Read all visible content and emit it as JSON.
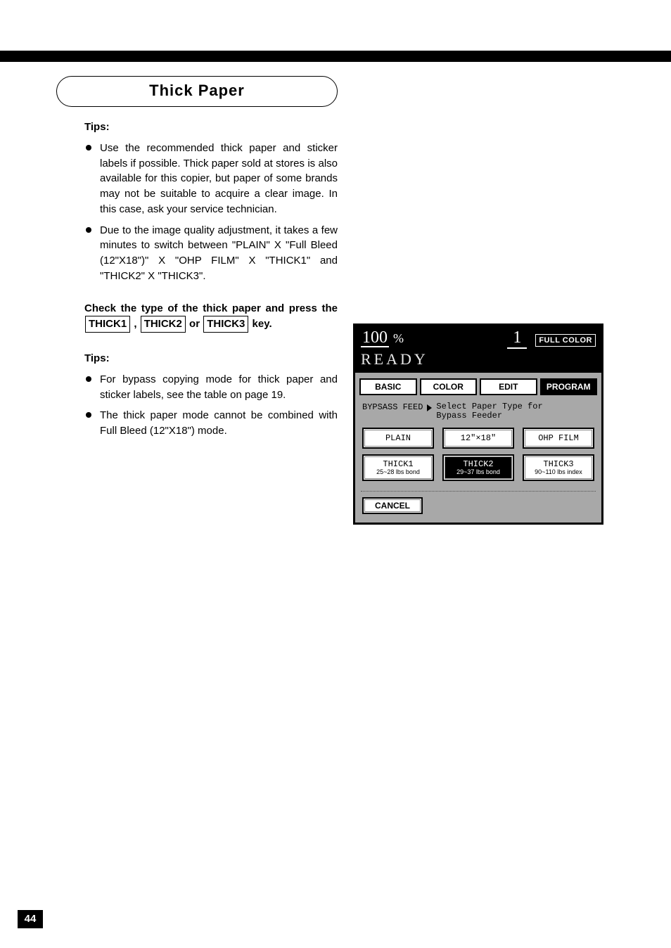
{
  "page": {
    "section_title": "Thick Paper",
    "page_number": "44"
  },
  "tips1_label": "Tips:",
  "tips1": [
    "Use the recommended thick paper and sticker labels if possible.  Thick paper sold at stores is also available for this copier, but paper of some brands may not be suitable to acquire a clear image.  In this case, ask your service technician.",
    "Due to the image quality adjustment, it takes a few minutes to switch between \"PLAIN\" X \"Full Bleed (12\"X18\")\" X \"OHP FILM\" X \"THICK1\" and \"THICK2\" X \"THICK3\"."
  ],
  "check": {
    "pre": "Check the type of the thick paper and press the",
    "k1": "THICK1",
    "sep1": ",",
    "k2": "THICK2",
    "sep2": "or",
    "k3": "THICK3",
    "post": " key."
  },
  "tips2_label": "Tips:",
  "tips2": [
    "For bypass copying mode for thick paper and sticker labels, see the table on page 19.",
    "The thick paper mode cannot be combined with Full Bleed (12\"X18\") mode."
  ],
  "lcd": {
    "zoom": "100",
    "pct": "%",
    "qty": "1",
    "fullcolor": "FULL COLOR",
    "ready": "READY",
    "tabs": {
      "basic": "BASIC",
      "color": "COLOR",
      "edit": "EDIT",
      "program": "PROGRAM"
    },
    "bypass_label": "BYPSASS FEED",
    "bypass_msg_l1": "Select Paper Type for",
    "bypass_msg_l2": "Bypass Feeder",
    "row1": {
      "plain": "PLAIN",
      "size": "12\"×18\"",
      "ohp": "OHP FILM"
    },
    "row2": {
      "t1": "THICK1",
      "t1s": "25~28 lbs bond",
      "t2": "THICK2",
      "t2s": "29~37 lbs bond",
      "t3": "THICK3",
      "t3s": "90~110 lbs index"
    },
    "cancel": "CANCEL"
  }
}
